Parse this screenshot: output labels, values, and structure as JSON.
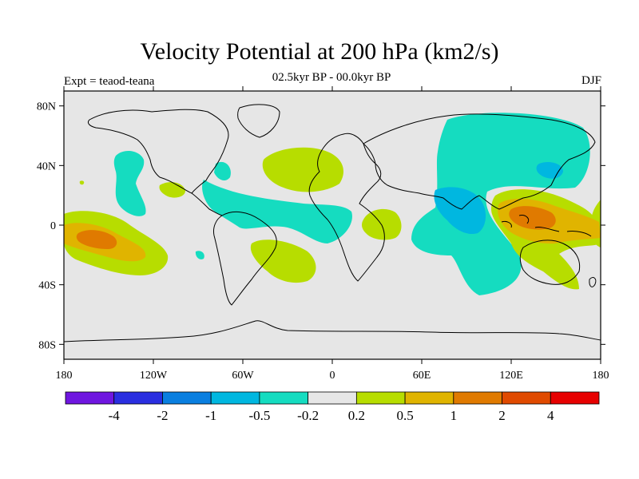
{
  "title": "Velocity Potential at 200 hPa (km2/s)",
  "subtitle": "02.5kyr BP - 00.0kyr BP",
  "left_string": "Expt = teaod-teana",
  "right_string": "DJF",
  "map": {
    "projection": "cylindrical-equidistant",
    "lon_range": [
      -180,
      180
    ],
    "lat_range": [
      -90,
      90
    ],
    "ocean_land_fill": "#e6e6e6",
    "coastline_color": "#000000",
    "lat_ticks": [
      "80N",
      "40N",
      "0",
      "40S",
      "80S"
    ],
    "lat_tick_values": [
      80,
      40,
      0,
      -40,
      -80
    ],
    "lon_ticks": [
      "180",
      "120W",
      "60W",
      "0",
      "60E",
      "120E",
      "180"
    ],
    "lon_tick_values": [
      -180,
      -120,
      -60,
      0,
      60,
      120,
      180
    ],
    "anomalies": [
      {
        "name": "central-pacific-positive",
        "lon": -160,
        "lat": -12,
        "level": "0.2 to 0.5"
      },
      {
        "name": "central-pacific-core",
        "lon": -158,
        "lat": -10,
        "level": "0.5 to 1"
      },
      {
        "name": "central-pacific-peak",
        "lon": -155,
        "lat": -10,
        "level": "1 to 2"
      },
      {
        "name": "north-atlantic-positive",
        "lon": -10,
        "lat": 38,
        "level": "0.2 to 0.5"
      },
      {
        "name": "south-atlantic-positive",
        "lon": -35,
        "lat": -25,
        "level": "0.2 to 0.5"
      },
      {
        "name": "east-africa-positive",
        "lon": 35,
        "lat": 0,
        "level": "0.2 to 0.5"
      },
      {
        "name": "maritime-continent-positive",
        "lon": 140,
        "lat": -5,
        "level": "0.2 to 0.5"
      },
      {
        "name": "maritime-continent-core",
        "lon": 140,
        "lat": 2,
        "level": "1 to 2"
      },
      {
        "name": "eurasia-negative",
        "lon": 95,
        "lat": 25,
        "level": "-0.5 to -0.2"
      },
      {
        "name": "indian-ocean-negative",
        "lon": 80,
        "lat": 0,
        "level": "-1 to -0.5"
      },
      {
        "name": "tropical-atlantic-negative",
        "lon": -60,
        "lat": 10,
        "level": "-0.5 to -0.2"
      },
      {
        "name": "north-pacific-negative",
        "lon": -130,
        "lat": 35,
        "level": "-0.5 to -0.2"
      }
    ]
  },
  "colorbar": {
    "colors": [
      "#6f16e0",
      "#2a2ee0",
      "#0a7fe0",
      "#00b7e0",
      "#15dcc0",
      "#e6e6e6",
      "#b7dd00",
      "#e0b400",
      "#e07a00",
      "#e04a00",
      "#e60000"
    ],
    "labels": [
      "-4",
      "-2",
      "-1",
      "-0.5",
      "-0.2",
      "0.2",
      "0.5",
      "1",
      "2",
      "4"
    ]
  }
}
